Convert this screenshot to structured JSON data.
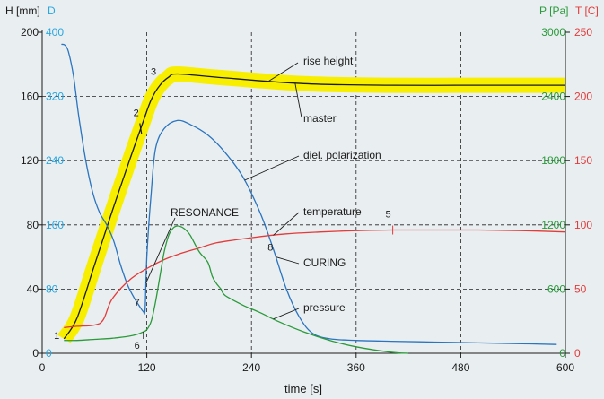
{
  "chart_data": {
    "type": "line",
    "title": "",
    "xlabel": "time [s]",
    "xlim": [
      0,
      600
    ],
    "x_ticks": [
      "0",
      "120",
      "240",
      "360",
      "480",
      "600"
    ],
    "x_tick_values": [
      0,
      120,
      240,
      360,
      480,
      600
    ],
    "grid": "dashed",
    "axes": {
      "H": {
        "label": "H [mm]",
        "side": "left",
        "color": "#1a1a1a",
        "range": [
          0,
          200
        ],
        "ticks": [
          "0",
          "40",
          "80",
          "120",
          "160",
          "200"
        ]
      },
      "D": {
        "label": "D",
        "side": "left",
        "color": "#2aa7df",
        "range": [
          0,
          400
        ],
        "ticks": [
          "0",
          "80",
          "160",
          "240",
          "320",
          "400"
        ]
      },
      "P": {
        "label": "P [Pa]",
        "side": "right",
        "color": "#2a9a3a",
        "range": [
          0,
          3000
        ],
        "ticks": [
          "0",
          "600",
          "1200",
          "1800",
          "2400",
          "3000"
        ]
      },
      "T": {
        "label": "T [C]",
        "side": "right",
        "color": "#e43a3a",
        "range": [
          0,
          250
        ],
        "ticks": [
          "0",
          "50",
          "100",
          "150",
          "200",
          "250"
        ]
      }
    },
    "series": [
      {
        "name": "rise height",
        "axis": "H",
        "color": "#f7ee00",
        "band": true,
        "x": [
          25,
          40,
          60,
          80,
          100,
          115,
          125,
          135,
          145,
          155,
          200,
          300,
          400,
          500,
          600
        ],
        "y": [
          9,
          22,
          55,
          88,
          120,
          143,
          158,
          167,
          172,
          174,
          172,
          168,
          167,
          167,
          167
        ]
      },
      {
        "name": "master",
        "axis": "H",
        "color": "#1a1a1a",
        "x": [
          25,
          40,
          60,
          80,
          100,
          115,
          125,
          135,
          145,
          155,
          200,
          300,
          400,
          500,
          600
        ],
        "y": [
          9,
          22,
          55,
          88,
          120,
          143,
          158,
          167,
          172,
          174,
          172,
          168,
          167,
          167,
          167
        ]
      },
      {
        "name": "diel. polarization",
        "axis": "D",
        "color": "#2a74c0",
        "x": [
          22,
          26,
          30,
          36,
          42,
          50,
          58,
          66,
          74,
          82,
          90,
          98,
          106,
          112,
          116,
          118,
          120,
          125,
          130,
          140,
          155,
          170,
          190,
          210,
          230,
          250,
          265,
          280,
          295,
          310,
          330,
          360,
          400,
          450,
          500,
          550,
          590
        ],
        "y": [
          385,
          384,
          376,
          345,
          295,
          240,
          200,
          175,
          160,
          140,
          110,
          85,
          68,
          58,
          52,
          55,
          120,
          200,
          255,
          280,
          290,
          285,
          272,
          250,
          220,
          175,
          130,
          80,
          45,
          25,
          18,
          16,
          15,
          14,
          13,
          12,
          11
        ]
      },
      {
        "name": "temperature",
        "axis": "T",
        "color": "#e43a3a",
        "x": [
          25,
          40,
          60,
          70,
          80,
          100,
          120,
          140,
          160,
          180,
          200,
          240,
          280,
          320,
          360,
          400,
          450,
          500,
          550,
          600
        ],
        "y": [
          20,
          21,
          22,
          26,
          42,
          57,
          66,
          73,
          78,
          82,
          86,
          90,
          93,
          94.5,
          95.5,
          96,
          96,
          96,
          95.5,
          94.5
        ]
      },
      {
        "name": "pressure",
        "axis": "P",
        "color": "#2a9a3a",
        "x": [
          25,
          40,
          60,
          80,
          100,
          110,
          116,
          120,
          125,
          130,
          135,
          140,
          145,
          150,
          155,
          160,
          165,
          170,
          180,
          190,
          195,
          200,
          205,
          210,
          230,
          250,
          270,
          300,
          330,
          360,
          400,
          420
        ],
        "y": [
          120,
          120,
          130,
          140,
          160,
          180,
          200,
          220,
          300,
          480,
          720,
          950,
          1100,
          1170,
          1190,
          1180,
          1150,
          1100,
          950,
          850,
          720,
          650,
          600,
          540,
          450,
          380,
          300,
          200,
          120,
          60,
          10,
          0
        ]
      }
    ],
    "annotations": [
      "rise height",
      "master",
      "diel. polarization",
      "RESONANCE",
      "temperature",
      "CURING",
      "pressure"
    ],
    "points": [
      {
        "label": "1",
        "x": 25
      },
      {
        "label": "2",
        "x": 113
      },
      {
        "label": "3",
        "x": 137
      },
      {
        "label": "5",
        "x": 402
      },
      {
        "label": "6",
        "x": 116
      },
      {
        "label": "7",
        "x": 116
      },
      {
        "label": "8",
        "x": 268
      }
    ]
  }
}
